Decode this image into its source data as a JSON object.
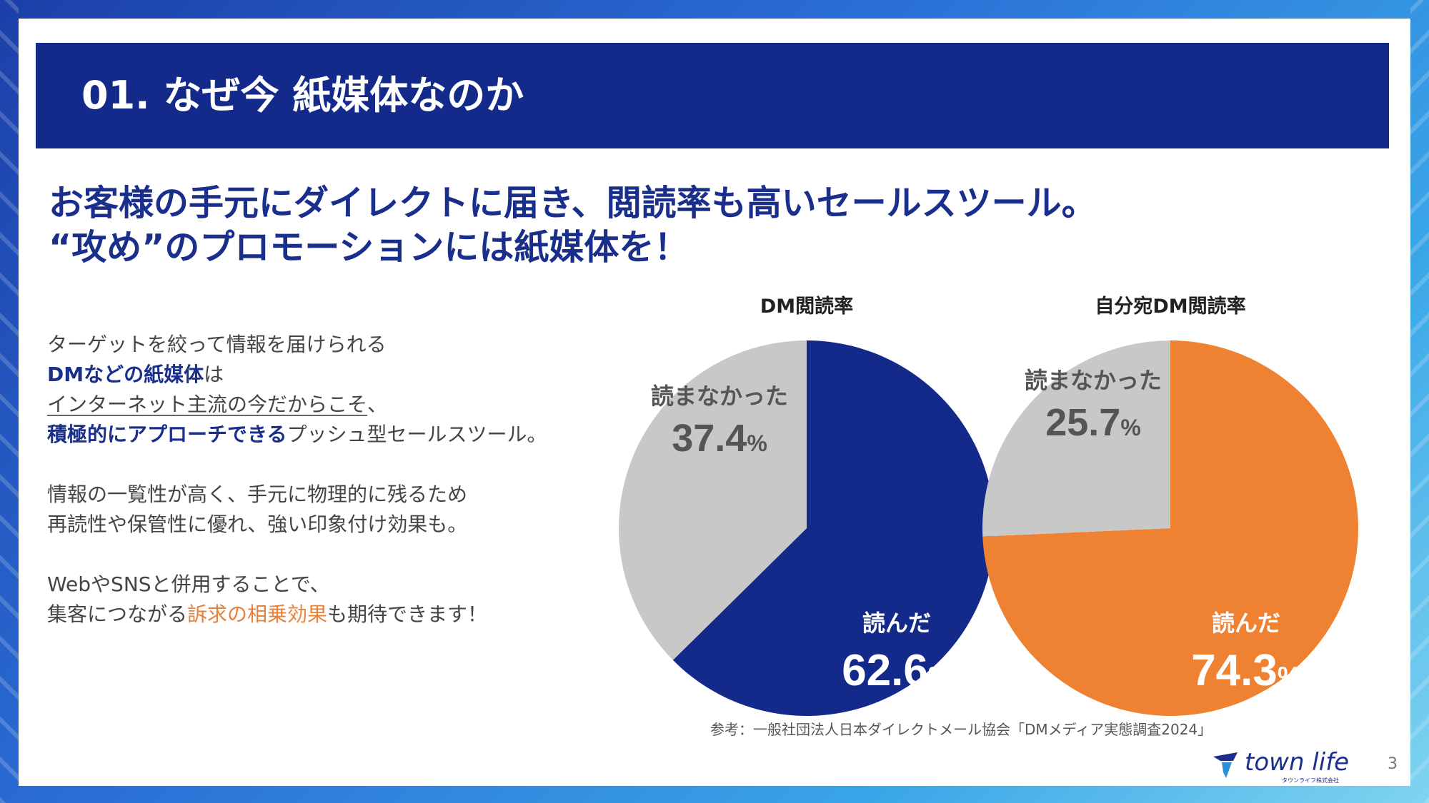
{
  "title": "01. なぜ今 紙媒体なのか",
  "headline": {
    "line1": "お客様の手元にダイレクトに届き、閲読率も高いセールスツール。",
    "line2": "“攻め”のプロモーションには紙媒体を！"
  },
  "body": {
    "p1": {
      "l1": "ターゲットを絞って情報を届けられる",
      "l2_bold": "DMなどの紙媒体",
      "l2_rest": "は",
      "l3_underline": "インターネット主流の今だからこそ",
      "l3_rest": "、",
      "l4_bold": "積極的にアプローチできる",
      "l4_rest": "プッシュ型セールスツール。"
    },
    "p2": {
      "l1": "情報の一覧性が高く、手元に物理的に残るため",
      "l2": "再読性や保管性に優れ、強い印象付け効果も。"
    },
    "p3": {
      "l1": "WebやSNSと併用することで、",
      "l2_pre": "集客につながる",
      "l2_orange": "訴求の相乗効果",
      "l2_post": "も期待できます！"
    }
  },
  "chart_data": [
    {
      "type": "pie",
      "title": "DM閲読率",
      "slices": [
        {
          "label": "読んだ",
          "value": 62.6,
          "color": "#132a8a",
          "text_color": "#ffffff"
        },
        {
          "label": "読まなかった",
          "value": 37.4,
          "color": "#c8c8c8",
          "text_color": "#555555"
        }
      ]
    },
    {
      "type": "pie",
      "title": "自分宛DM閲読率",
      "slices": [
        {
          "label": "読んだ",
          "value": 74.3,
          "color": "#ee8232",
          "text_color": "#ffffff"
        },
        {
          "label": "読まなかった",
          "value": 25.7,
          "color": "#c8c8c8",
          "text_color": "#555555"
        }
      ]
    }
  ],
  "percent_sign": "%",
  "source": "参考：一般社団法人日本ダイレクトメール協会「DMメディア実態調査2024」",
  "logo": {
    "name": "town life",
    "sub": "タウンライフ株式会社"
  },
  "page_number": "3",
  "colors": {
    "navy": "#132a8a",
    "orange": "#ee8232",
    "gray": "#c8c8c8"
  }
}
